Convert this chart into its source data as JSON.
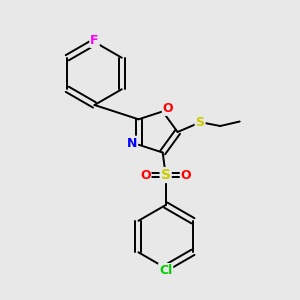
{
  "background_color": "#e8e8e8",
  "bond_color": "#000000",
  "atom_colors": {
    "F": "#ff00ff",
    "O": "#ff0000",
    "N": "#0000ff",
    "S_thio": "#cccc00",
    "S_sulfone": "#cccc00",
    "Cl": "#00cc00",
    "C": "#000000"
  },
  "figsize": [
    3.0,
    3.0
  ],
  "dpi": 100,
  "lw": 1.4,
  "xlim": [
    0,
    10
  ],
  "ylim": [
    0,
    10
  ]
}
